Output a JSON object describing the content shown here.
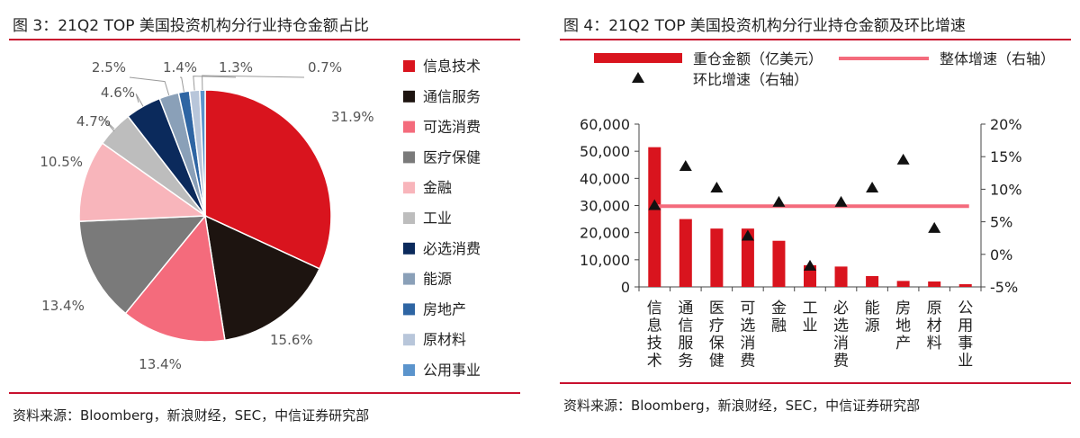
{
  "left": {
    "title": "图 3：21Q2 TOP 美国投资机构分行业持仓金额占比",
    "source": "资料来源：Bloomberg，新浪财经，SEC，中信证券研究部"
  },
  "right": {
    "title": "图 4：21Q2 TOP 美国投资机构分行业持仓金额及环比增速",
    "source": "资料来源：Bloomberg，新浪财经，SEC，中信证券研究部"
  },
  "chart_data": [
    {
      "type": "pie",
      "title": "图 3：21Q2 TOP 美国投资机构分行业持仓金额占比",
      "legend_position": "right",
      "slices": [
        {
          "label": "信息技术",
          "value": 31.9,
          "display": "31.9%",
          "color": "#d9141e"
        },
        {
          "label": "通信服务",
          "value": 15.6,
          "display": "15.6%",
          "color": "#1d1410"
        },
        {
          "label": "可选消费",
          "value": 13.4,
          "display": "13.4%",
          "color": "#f46b7c"
        },
        {
          "label": "医疗保健",
          "value": 13.4,
          "display": "13.4%",
          "color": "#7a7a7a"
        },
        {
          "label": "金融",
          "value": 10.5,
          "display": "10.5%",
          "color": "#f8b5bb"
        },
        {
          "label": "工业",
          "value": 4.7,
          "display": "4.7%",
          "color": "#bdbdbd"
        },
        {
          "label": "必选消费",
          "value": 4.6,
          "display": "4.6%",
          "color": "#0b2a5c"
        },
        {
          "label": "能源",
          "value": 2.5,
          "display": "2.5%",
          "color": "#8aa0b8"
        },
        {
          "label": "房地产",
          "value": 1.4,
          "display": "1.4%",
          "color": "#2e65a3"
        },
        {
          "label": "原材料",
          "value": 1.3,
          "display": "1.3%",
          "color": "#b8c6da"
        },
        {
          "label": "公用事业",
          "value": 0.7,
          "display": "0.7%",
          "color": "#5b94cc"
        }
      ]
    },
    {
      "type": "bar",
      "title": "图 4：21Q2 TOP 美国投资机构分行业持仓金额及环比增速",
      "categories": [
        "信息技术",
        "通信服务",
        "医疗保健",
        "可选消费",
        "金融",
        "工业",
        "必选消费",
        "能源",
        "房地产",
        "原材料",
        "公用事业"
      ],
      "series": [
        {
          "name": "重仓金额（亿美元）",
          "kind": "bar",
          "axis": "left",
          "color": "#d9141e",
          "values": [
            51500,
            25000,
            21500,
            21500,
            17000,
            8000,
            7500,
            4000,
            2200,
            2000,
            1000
          ]
        },
        {
          "name": "整体增速（右轴）",
          "kind": "line",
          "axis": "right",
          "color": "#f46b7c",
          "values": [
            7.4,
            7.4,
            7.4,
            7.4,
            7.4,
            7.4,
            7.4,
            7.4,
            7.4,
            7.4,
            7.4
          ]
        },
        {
          "name": "环比增速（右轴）",
          "kind": "marker",
          "axis": "right",
          "color": "#111111",
          "values": [
            7.5,
            13.5,
            10.2,
            2.8,
            8.0,
            -1.8,
            8.0,
            10.2,
            14.5,
            4.0,
            null
          ]
        }
      ],
      "y_left": {
        "min": 0,
        "max": 60000,
        "ticks": [
          "0",
          "10,000",
          "20,000",
          "30,000",
          "40,000",
          "50,000",
          "60,000"
        ]
      },
      "y_right": {
        "min": -5,
        "max": 20,
        "ticks": [
          "-5%",
          "0%",
          "5%",
          "10%",
          "15%",
          "20%"
        ]
      },
      "legend_position": "top",
      "grid": false
    }
  ]
}
